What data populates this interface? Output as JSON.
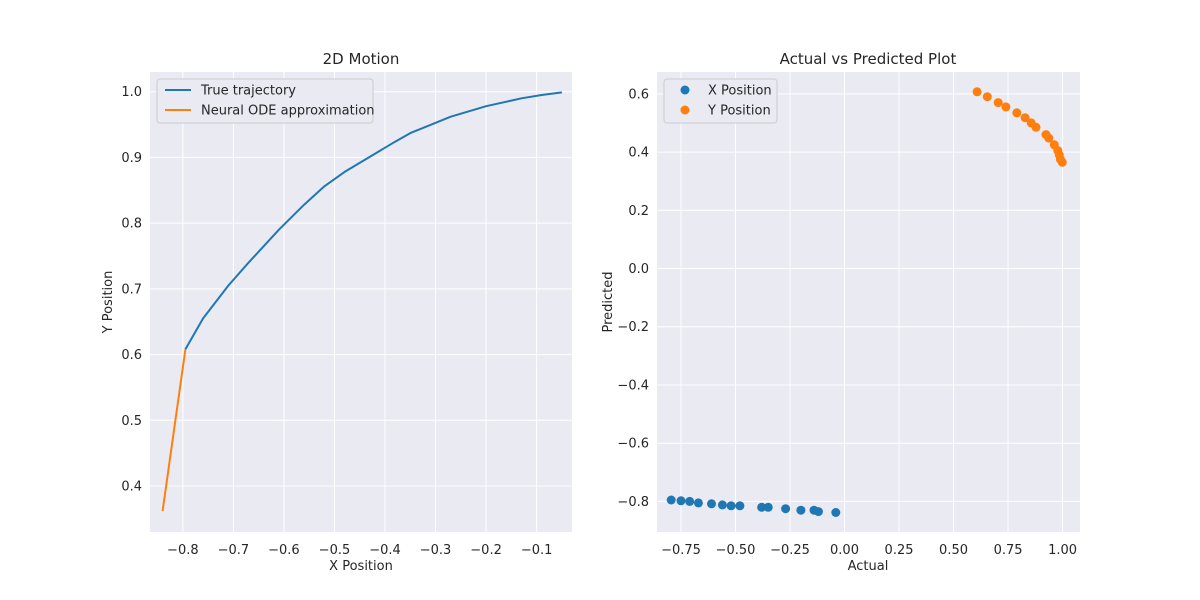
{
  "chart_data": [
    {
      "type": "line",
      "title": "2D Motion",
      "xlabel": "X Position",
      "ylabel": "Y Position",
      "xlim": [
        -0.865,
        -0.03
      ],
      "ylim": [
        0.33,
        1.03
      ],
      "xticks": [
        -0.8,
        -0.7,
        -0.6,
        -0.5,
        -0.4,
        -0.3,
        -0.2,
        -0.1
      ],
      "xtick_labels": [
        "−0.8",
        "−0.7",
        "−0.6",
        "−0.5",
        "−0.4",
        "−0.3",
        "−0.2",
        "−0.1"
      ],
      "yticks": [
        0.4,
        0.5,
        0.6,
        0.7,
        0.8,
        0.9,
        1.0
      ],
      "ytick_labels": [
        "0.4",
        "0.5",
        "0.6",
        "0.7",
        "0.8",
        "0.9",
        "1.0"
      ],
      "grid": true,
      "legend_position": "top-left",
      "series": [
        {
          "name": "True trajectory",
          "color": "#1f77b4",
          "x": [
            -0.05,
            -0.09,
            -0.13,
            -0.2,
            -0.27,
            -0.35,
            -0.38,
            -0.48,
            -0.52,
            -0.56,
            -0.61,
            -0.67,
            -0.71,
            -0.76,
            -0.795
          ],
          "y": [
            0.999,
            0.995,
            0.99,
            0.978,
            0.962,
            0.937,
            0.924,
            0.878,
            0.856,
            0.828,
            0.79,
            0.74,
            0.705,
            0.655,
            0.608
          ]
        },
        {
          "name": "Neural ODE approximation",
          "color": "#ff7f0e",
          "x": [
            -0.795,
            -0.84
          ],
          "y": [
            0.608,
            0.362
          ]
        }
      ]
    },
    {
      "type": "scatter",
      "title": "Actual vs Predicted Plot",
      "xlabel": "Actual",
      "ylabel": "Predicted",
      "xlim": [
        -0.86,
        1.08
      ],
      "ylim": [
        -0.905,
        0.675
      ],
      "xticks": [
        -0.75,
        -0.5,
        -0.25,
        0.0,
        0.25,
        0.5,
        0.75,
        1.0
      ],
      "xtick_labels": [
        "−0.75",
        "−0.50",
        "−0.25",
        "0.00",
        "0.25",
        "0.50",
        "0.75",
        "1.00"
      ],
      "yticks": [
        -0.8,
        -0.6,
        -0.4,
        -0.2,
        0.0,
        0.2,
        0.4,
        0.6
      ],
      "ytick_labels": [
        "−0.8",
        "−0.6",
        "−0.4",
        "−0.2",
        "0.0",
        "0.2",
        "0.4",
        "0.6"
      ],
      "grid": true,
      "legend_position": "top-left",
      "series": [
        {
          "name": "X Position",
          "color": "#1f77b4",
          "x": [
            -0.795,
            -0.75,
            -0.71,
            -0.67,
            -0.61,
            -0.56,
            -0.52,
            -0.48,
            -0.38,
            -0.35,
            -0.27,
            -0.2,
            -0.14,
            -0.12,
            -0.04
          ],
          "y": [
            -0.795,
            -0.798,
            -0.8,
            -0.805,
            -0.808,
            -0.812,
            -0.815,
            -0.815,
            -0.82,
            -0.82,
            -0.825,
            -0.83,
            -0.83,
            -0.835,
            -0.838
          ]
        },
        {
          "name": "Y Position",
          "color": "#ff7f0e",
          "x": [
            0.608,
            0.655,
            0.705,
            0.74,
            0.79,
            0.828,
            0.856,
            0.878,
            0.924,
            0.937,
            0.962,
            0.978,
            0.985,
            0.99,
            0.999
          ],
          "y": [
            0.607,
            0.59,
            0.57,
            0.555,
            0.535,
            0.518,
            0.5,
            0.485,
            0.46,
            0.448,
            0.425,
            0.405,
            0.39,
            0.375,
            0.365
          ]
        }
      ]
    }
  ]
}
